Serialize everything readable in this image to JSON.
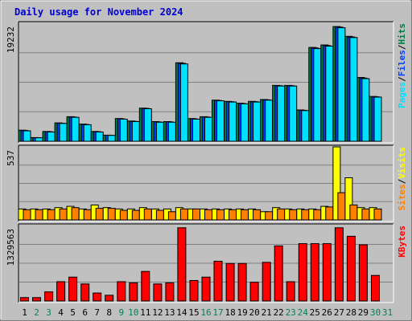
{
  "chart_data": {
    "type": "bar",
    "title": "Daily usage for November 2024",
    "categories": [
      "1",
      "2",
      "3",
      "4",
      "5",
      "6",
      "7",
      "8",
      "9",
      "10",
      "11",
      "12",
      "13",
      "14",
      "15",
      "16",
      "17",
      "18",
      "19",
      "20",
      "21",
      "22",
      "23",
      "24",
      "25",
      "26",
      "27",
      "28",
      "29",
      "30",
      "31"
    ],
    "weekend_days": [
      "2",
      "3",
      "9",
      "10",
      "16",
      "17",
      "23",
      "24",
      "30",
      "31"
    ],
    "colors": {
      "hits": "#008040",
      "files": "#0040ff",
      "pages": "#00e0ff",
      "visits": "#ffff00",
      "sites": "#ff8000",
      "kbytes": "#ff0000",
      "weekday_label": "#000000",
      "weekend_label": "#00805c",
      "bg": "#c0c0c0",
      "grid": "#808080"
    },
    "panels": [
      {
        "id": "hits-files-pages",
        "max_label": "19232",
        "ymax": 19232,
        "right_label": [
          "Pages",
          "/",
          "Files",
          "/",
          "Hits"
        ],
        "right_label_colors": [
          "#00e0ff",
          "#000000",
          "#0040ff",
          "#000000",
          "#008040"
        ],
        "series": [
          {
            "name": "Hits",
            "values": [
              1800,
              600,
              1600,
              3000,
              4000,
              2800,
              1600,
              1000,
              3700,
              3300,
              5400,
              3200,
              3200,
              12800,
              3700,
              4000,
              6700,
              6500,
              6200,
              6500,
              6800,
              9100,
              9100,
              5100,
              15300,
              15700,
              18700,
              17100,
              10400,
              7300,
              0
            ]
          },
          {
            "name": "Files",
            "values": [
              1750,
              580,
              1560,
              2950,
              3950,
              2750,
              1560,
              980,
              3650,
              3250,
              5350,
              3150,
              3150,
              12700,
              3650,
              3950,
              6650,
              6450,
              6150,
              6450,
              6750,
              9050,
              9050,
              5050,
              15200,
              15600,
              18600,
              17000,
              10300,
              7250,
              0
            ]
          },
          {
            "name": "Pages",
            "values": [
              1700,
              560,
              1500,
              2900,
              3900,
              2700,
              1500,
              950,
              3600,
              3200,
              5300,
              3100,
              3100,
              12600,
              3600,
              3900,
              6600,
              6400,
              6100,
              6400,
              6700,
              9000,
              9000,
              5000,
              15100,
              15500,
              18500,
              16900,
              10200,
              7200,
              0
            ]
          }
        ]
      },
      {
        "id": "visits-sites",
        "max_label": "537",
        "ymax": 537,
        "right_label": [
          "Sites",
          "/",
          "Visits"
        ],
        "right_label_colors": [
          "#ff8000",
          "#000000",
          "#ffff00"
        ],
        "series": [
          {
            "name": "Visits",
            "values": [
              80,
              80,
              80,
              90,
              100,
              80,
              110,
              90,
              80,
              80,
              90,
              80,
              80,
              90,
              80,
              80,
              80,
              80,
              80,
              80,
              60,
              90,
              80,
              80,
              80,
              100,
              537,
              310,
              90,
              90,
              0
            ]
          },
          {
            "name": "Sites",
            "values": [
              75,
              75,
              75,
              80,
              90,
              75,
              85,
              85,
              70,
              70,
              80,
              70,
              60,
              80,
              80,
              75,
              75,
              75,
              75,
              75,
              60,
              80,
              75,
              75,
              75,
              95,
              200,
              110,
              80,
              80,
              0
            ]
          }
        ]
      },
      {
        "id": "kbytes",
        "max_label": "1329563",
        "ymax": 1329563,
        "right_label": [
          "KBytes"
        ],
        "right_label_colors": [
          "#ff0000"
        ],
        "series": [
          {
            "name": "KBytes",
            "values": [
              60000,
              60000,
              160000,
              340000,
              420000,
              300000,
              140000,
              100000,
              340000,
              320000,
              520000,
              300000,
              320000,
              1290000,
              360000,
              420000,
              700000,
              660000,
              660000,
              330000,
              680000,
              970000,
              340000,
              1010000,
              1010000,
              1010000,
              1290000,
              1140000,
              990000,
              450000,
              0
            ]
          }
        ]
      }
    ]
  }
}
